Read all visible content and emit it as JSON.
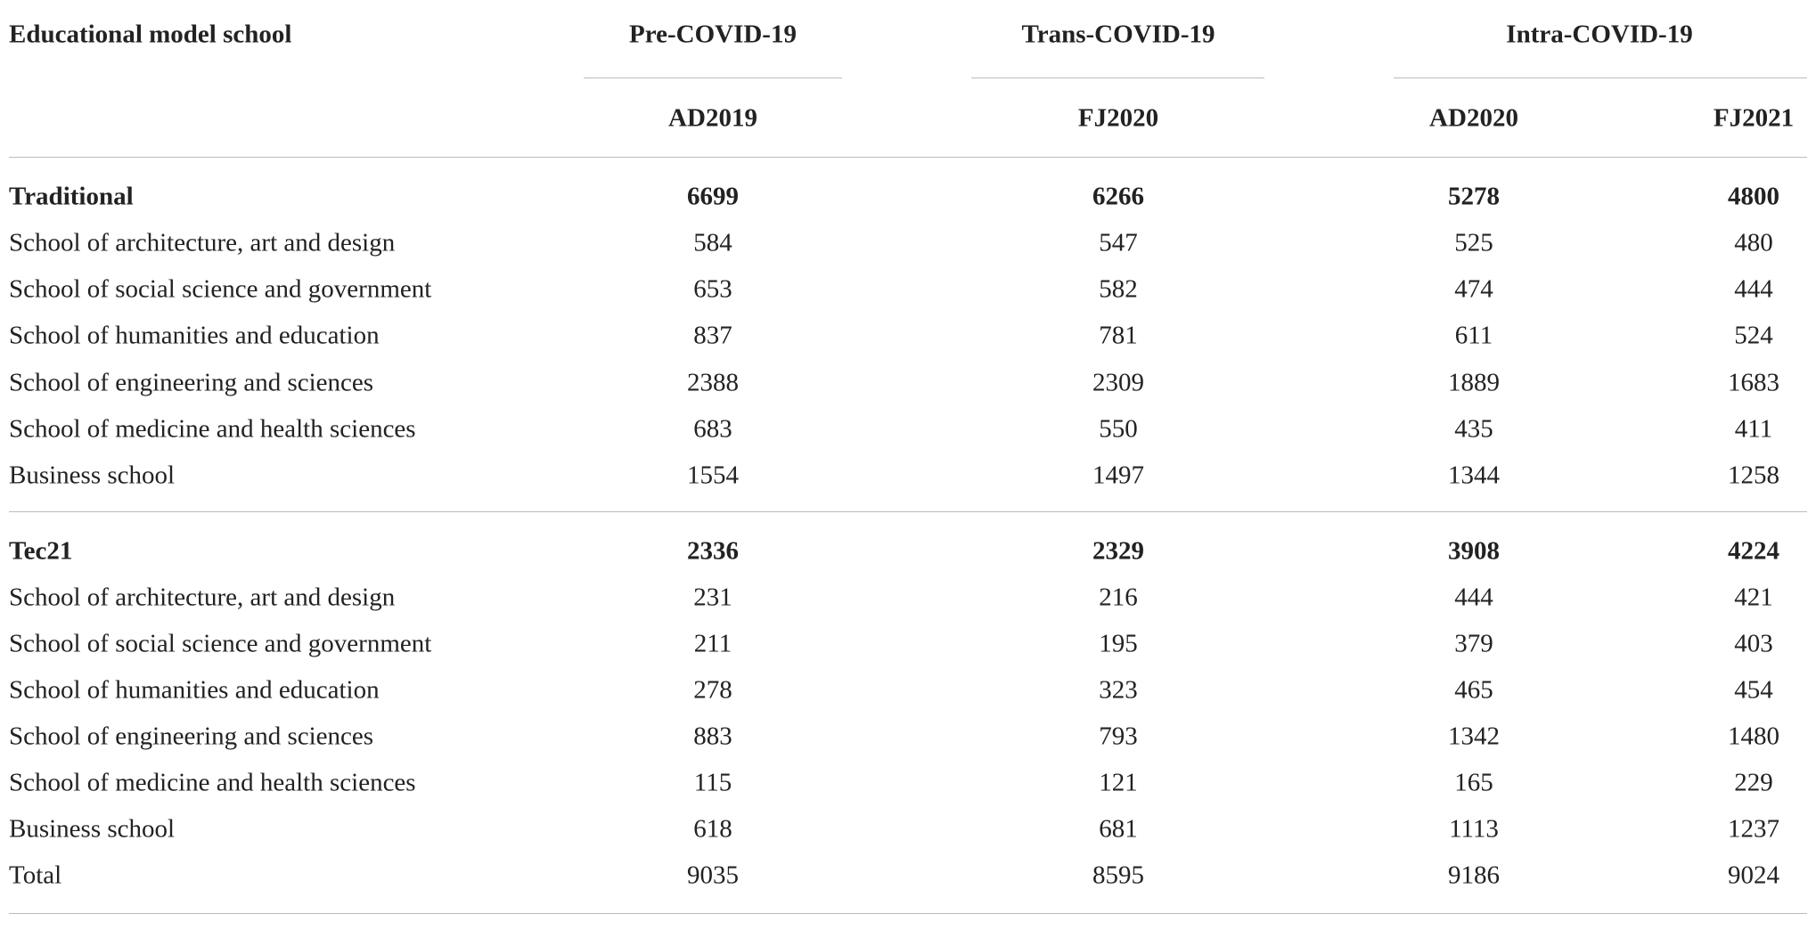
{
  "header": {
    "title": "Educational model school",
    "groups": [
      "Pre-COVID-19",
      "Trans-COVID-19",
      "Intra-COVID-19"
    ],
    "columns": [
      "AD2019",
      "FJ2020",
      "AD2020",
      "FJ2021"
    ]
  },
  "table": {
    "rows": [
      [
        "Traditional",
        6699,
        6266,
        5278,
        4800
      ],
      [
        "School of architecture, art and design",
        584,
        547,
        525,
        480
      ],
      [
        "School of social science and government",
        653,
        582,
        474,
        444
      ],
      [
        "School of humanities and education",
        837,
        781,
        611,
        524
      ],
      [
        "School of engineering and sciences",
        2388,
        2309,
        1889,
        1683
      ],
      [
        "School of medicine and health sciences",
        683,
        550,
        435,
        411
      ],
      [
        "Business school",
        1554,
        1497,
        1344,
        1258
      ],
      [
        "Tec21",
        2336,
        2329,
        3908,
        4224
      ],
      [
        "School of architecture, art and design",
        231,
        216,
        444,
        421
      ],
      [
        "School of social science and government",
        211,
        195,
        379,
        403
      ],
      [
        "School of humanities and education",
        278,
        323,
        465,
        454
      ],
      [
        "School of engineering and sciences",
        883,
        793,
        1342,
        1480
      ],
      [
        "School of medicine and health sciences",
        115,
        121,
        165,
        229
      ],
      [
        "Business school",
        618,
        681,
        1113,
        1237
      ],
      [
        "Total",
        9035,
        8595,
        9186,
        9024
      ]
    ]
  }
}
